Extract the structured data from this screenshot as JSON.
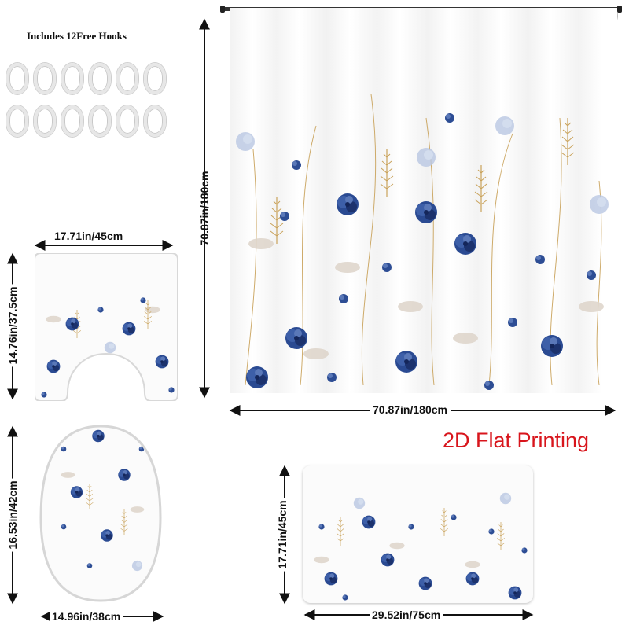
{
  "hooks": {
    "title": "Includes 12Free Hooks",
    "count": 12,
    "icon": "c-ring-hook-icon"
  },
  "curtain": {
    "height_label": "70.87in/180cm",
    "width_label": "70.87in/180cm",
    "rod_icon": "curtain-rod-icon",
    "ring_count": 12
  },
  "printing_label": "2D Flat Printing",
  "contour_mat": {
    "width_label": "17.71in/45cm",
    "height_label": "14.76in/37.5cm"
  },
  "lid_cover": {
    "height_label": "16.53in/42cm",
    "width_label": "14.96in/38cm"
  },
  "bath_mat": {
    "height_label": "17.71in/45cm",
    "width_label": "29.52in/75cm"
  },
  "colors": {
    "flower_dark": "#1f3a7a",
    "flower_mid": "#3d5fa8",
    "flower_light": "#9fb3d6",
    "gold": "#c9a25a",
    "leaf": "#d9cfc6",
    "accent_red": "#d8151c"
  }
}
